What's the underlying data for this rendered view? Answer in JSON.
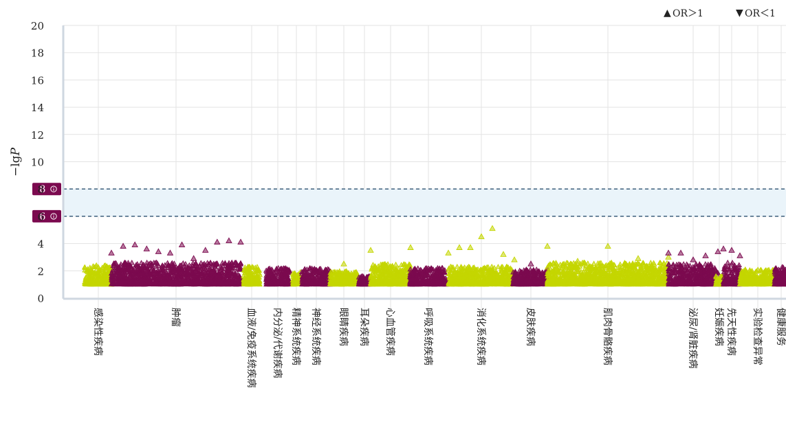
{
  "chart_data": {
    "type": "scatter",
    "ylabel_prefix": "−lg",
    "ylabel_var": "P",
    "ylim": [
      0,
      20
    ],
    "yticks": [
      "0",
      "2",
      "4",
      "6",
      "8",
      "10",
      "12",
      "14",
      "16",
      "18",
      "20"
    ],
    "grid": true,
    "legend_position": "top-right",
    "legend": [
      {
        "symbol": "▲",
        "label": "OR＞1",
        "color": "#8a8a8a"
      },
      {
        "symbol": "▼",
        "label": "OR＜1",
        "color": "#8a8a8a"
      }
    ],
    "thresholds": [
      {
        "value": 8,
        "label": "8"
      },
      {
        "value": 6,
        "label": "6"
      }
    ],
    "threshold_badge_icon": "info-circle-icon",
    "colors": {
      "odd": "#c4d600",
      "even": "#7b0a4f",
      "band": "#eaf4fa",
      "threshold": "#4a6a85"
    },
    "categories": [
      {
        "name": "感染性疾病",
        "color": "odd",
        "max": 2.4,
        "peaks": []
      },
      {
        "name": "肿瘤",
        "color": "even",
        "max": 2.6,
        "peaks": [
          3.3,
          3.8,
          3.9,
          3.6,
          3.4,
          3.3,
          3.9,
          2.9,
          3.5,
          4.1,
          4.2,
          4.1
        ]
      },
      {
        "name": "血液/免疫系统疾病",
        "color": "odd",
        "max": 2.3,
        "peaks": []
      },
      {
        "name": "内分泌/代谢疾病",
        "color": "even",
        "max": 2.2,
        "peaks": []
      },
      {
        "name": "精神系统疾病",
        "color": "odd",
        "max": 1.9,
        "peaks": []
      },
      {
        "name": "神经系统疾病",
        "color": "even",
        "max": 2.2,
        "peaks": []
      },
      {
        "name": "眼睛疾病",
        "color": "odd",
        "max": 2.0,
        "peaks": [
          2.5
        ]
      },
      {
        "name": "耳朵疾病",
        "color": "even",
        "max": 1.6,
        "peaks": []
      },
      {
        "name": "心血管疾病",
        "color": "odd",
        "max": 2.5,
        "peaks": [
          3.5,
          3.7
        ]
      },
      {
        "name": "呼吸系统疾病",
        "color": "even",
        "max": 2.2,
        "peaks": []
      },
      {
        "name": "消化系统疾病",
        "color": "odd",
        "max": 2.3,
        "peaks": [
          3.3,
          3.7,
          3.7,
          4.5,
          5.1,
          3.2,
          2.8
        ]
      },
      {
        "name": "皮肤疾病",
        "color": "even",
        "max": 2.1,
        "peaks": [
          2.5
        ]
      },
      {
        "name": "肌肉骨骼疾病",
        "color": "odd",
        "max": 2.6,
        "peaks": [
          3.8,
          2.7,
          3.8,
          2.9,
          3.0
        ]
      },
      {
        "name": "泌尿/肾脏疾病",
        "color": "even",
        "max": 2.5,
        "peaks": [
          3.3,
          3.3,
          2.8,
          3.1,
          3.4
        ]
      },
      {
        "name": "妊娠疾病",
        "color": "odd",
        "max": 1.6,
        "peaks": []
      },
      {
        "name": "先天性疾病",
        "color": "even",
        "max": 2.6,
        "peaks": [
          3.6,
          3.5,
          3.1
        ]
      },
      {
        "name": "实验检查异常",
        "color": "odd",
        "max": 2.1,
        "peaks": []
      },
      {
        "name": "健康服务",
        "color": "even",
        "max": 2.3,
        "peaks": []
      }
    ]
  }
}
